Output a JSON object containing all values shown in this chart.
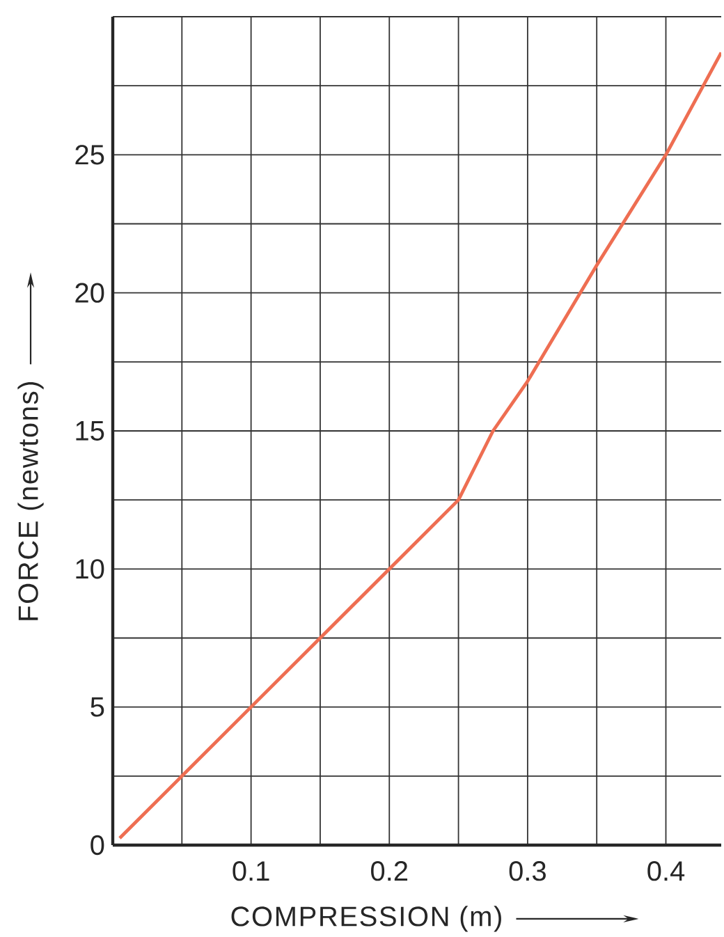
{
  "chart_data": {
    "type": "line",
    "xlabel": "COMPRESSION (m)",
    "ylabel": "FORCE (newtons)",
    "x": [
      0.005,
      0.05,
      0.1,
      0.15,
      0.2,
      0.25,
      0.275,
      0.3,
      0.35,
      0.4,
      0.44
    ],
    "values": [
      0.25,
      2.5,
      5,
      7.5,
      10,
      12.5,
      15,
      16.8,
      21,
      25,
      28.7
    ],
    "color": "#ee6e52",
    "xlim": [
      0,
      0.44
    ],
    "ylim": [
      0,
      30
    ],
    "xticks": [
      {
        "value": 0.05,
        "label": null
      },
      0.1,
      {
        "value": 0.15,
        "label": null
      },
      0.2,
      {
        "value": 0.25,
        "label": null
      },
      0.3,
      {
        "value": 0.35,
        "label": null
      },
      0.4
    ],
    "yticks": [
      0,
      {
        "value": 2.5,
        "label": null
      },
      5,
      {
        "value": 7.5,
        "label": null
      },
      10,
      {
        "value": 12.5,
        "label": null
      },
      15,
      {
        "value": 17.5,
        "label": null
      },
      20,
      {
        "value": 22.5,
        "label": null
      },
      25,
      {
        "value": 27.5,
        "label": null
      },
      {
        "value": 30,
        "label": null
      }
    ],
    "grid": true
  }
}
